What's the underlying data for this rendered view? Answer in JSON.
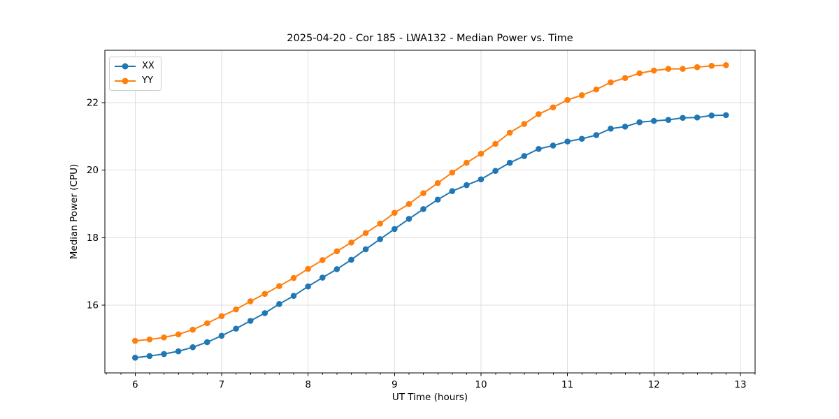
{
  "window": {
    "background": "#ffffff",
    "frame_color": "#000000"
  },
  "chart_data": {
    "type": "line",
    "title": "2025-04-20 - Cor 185 - LWA132 - Median Power vs. Time",
    "xlabel": "UT Time (hours)",
    "ylabel": "Median Power (CPU)",
    "xlim": [
      5.65,
      13.17
    ],
    "ylim": [
      14.0,
      23.55
    ],
    "xticks": [
      6,
      7,
      8,
      9,
      10,
      11,
      12,
      13
    ],
    "yticks": [
      16,
      18,
      20,
      22
    ],
    "x_minor_interval": 0.1667,
    "grid": true,
    "grid_color": "#dedede",
    "legend_position": "upper left",
    "x": [
      6.0,
      6.1667,
      6.3333,
      6.5,
      6.6667,
      6.8333,
      7.0,
      7.1667,
      7.3333,
      7.5,
      7.6667,
      7.8333,
      8.0,
      8.1667,
      8.3333,
      8.5,
      8.6667,
      8.8333,
      9.0,
      9.1667,
      9.3333,
      9.5,
      9.6667,
      9.8333,
      10.0,
      10.1667,
      10.3333,
      10.5,
      10.6667,
      10.8333,
      11.0,
      11.1667,
      11.3333,
      11.5,
      11.6667,
      11.8333,
      12.0,
      12.1667,
      12.3333,
      12.5,
      12.6667,
      12.8333
    ],
    "series": [
      {
        "name": "XX",
        "color": "#1f77b4",
        "marker": "circle",
        "values": [
          14.45,
          14.5,
          14.56,
          14.64,
          14.76,
          14.91,
          15.1,
          15.31,
          15.54,
          15.77,
          16.04,
          16.28,
          16.56,
          16.82,
          17.07,
          17.35,
          17.66,
          17.96,
          18.26,
          18.56,
          18.85,
          19.13,
          19.38,
          19.56,
          19.73,
          19.98,
          20.22,
          20.42,
          20.63,
          20.73,
          20.85,
          20.93,
          21.04,
          21.23,
          21.29,
          21.42,
          21.46,
          21.49,
          21.55,
          21.56,
          21.62,
          21.63
        ]
      },
      {
        "name": "YY",
        "color": "#ff7f0e",
        "marker": "circle",
        "values": [
          14.95,
          14.99,
          15.05,
          15.14,
          15.28,
          15.47,
          15.68,
          15.88,
          16.12,
          16.34,
          16.57,
          16.81,
          17.08,
          17.34,
          17.6,
          17.86,
          18.14,
          18.42,
          18.74,
          19.0,
          19.32,
          19.62,
          19.93,
          20.22,
          20.49,
          20.78,
          21.11,
          21.37,
          21.66,
          21.86,
          22.08,
          22.22,
          22.39,
          22.6,
          22.73,
          22.87,
          22.95,
          23.0,
          23.0,
          23.05,
          23.09,
          23.11
        ]
      }
    ]
  }
}
